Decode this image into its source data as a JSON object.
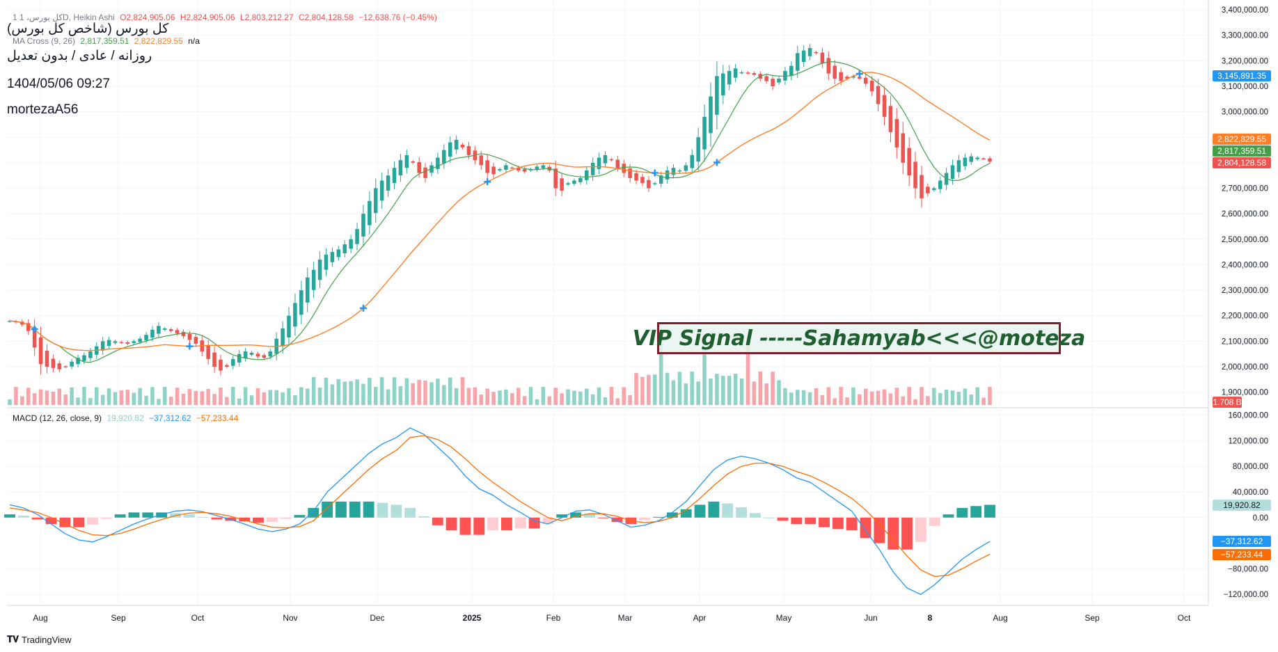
{
  "legend": {
    "symbol": "1  کل بورس، 1D, Heikin Ashi",
    "open": "O2,824,905.06",
    "high": "H2,824,905.06",
    "low": "L2,803,212.27",
    "close": "C2,804,128.58",
    "change": "−12,638.76 (−0.45%)",
    "ma_label": "MA Cross (9, 26)",
    "ma_fast": "2,817,359.51",
    "ma_slow": "2,822,829.55",
    "ma_extra": "n/a"
  },
  "overlay": {
    "line1": "کل بورس (شاخص کل بورس)",
    "line2": "روزانه / عادی / بدون تعدیل",
    "line3": "1404/05/06 09:27",
    "line4": "mortezaA56"
  },
  "signal_text": "VIP Signal -----Sahamyab<<<@moteza",
  "price_tags": {
    "tag1": "3,145,891.35",
    "tag2": "2,822,829.55",
    "tag3": "2,817,359.51",
    "tag4": "2,804,128.58",
    "volume": "1.708 B"
  },
  "macd": {
    "label": "MACD (12, 26, close, 9)",
    "hist": "19,920.82",
    "macd": "−37,312.62",
    "signal": "−57,233.44",
    "tag_hist": "19,920.82",
    "tag_macd": "−37,312.62",
    "tag_signal": "−57,233.44"
  },
  "footer": {
    "brand": "TradingView"
  },
  "colors": {
    "up": "#26a69a",
    "down": "#ef5350",
    "ma_fast": "#43a047",
    "ma_slow": "#ff7f27",
    "macd_line": "#2196f3",
    "signal_line": "#ff6d00",
    "vol_up": "#8fd3c6",
    "vol_down": "#f7a5aa",
    "hist_up_strong": "#26a69a",
    "hist_up_weak": "#b2dfdb",
    "hist_down_strong": "#ff5252",
    "hist_down_weak": "#ffcdd2",
    "signal_tag": "#2196f3"
  },
  "chart_data": [
    {
      "type": "candlestick",
      "title": "",
      "price_axis": {
        "min": 1850000,
        "max": 3400000,
        "ticks": [
          1900000,
          2000000,
          2100000,
          2200000,
          2300000,
          2400000,
          2500000,
          2600000,
          2700000,
          2800000,
          2900000,
          3000000,
          3100000,
          3200000,
          3300000,
          3400000
        ],
        "tick_labels": [
          "1,900,000.00",
          "2,000,000.00",
          "2,100,000.00",
          "2,200,000.00",
          "2,300,000.00",
          "2,400,000.00",
          "2,500,000.00",
          "2,600,000.00",
          "2,700,000.00",
          "2,800,000.00",
          "2,900,000.00",
          "3,000,000.00",
          "3,100,000.00",
          "3,200,000.00",
          "3,300,000.00",
          "3,400,000.00"
        ]
      },
      "time_axis": {
        "labels": [
          "Aug",
          "Sep",
          "Oct",
          "Nov",
          "Dec",
          "2025",
          "Feb",
          "Mar",
          "Apr",
          "May",
          "Jun",
          "8",
          "Aug",
          "Sep",
          "Oct"
        ]
      },
      "close_series": [
        2180000,
        2175000,
        2165000,
        2140000,
        2075000,
        2010000,
        2000000,
        1995000,
        1990000,
        2000000,
        2020000,
        2035000,
        2045000,
        2060000,
        2080000,
        2100000,
        2105000,
        2100000,
        2095000,
        2090000,
        2100000,
        2110000,
        2125000,
        2145000,
        2160000,
        2150000,
        2140000,
        2130000,
        2120000,
        2105000,
        2090000,
        2060000,
        2030000,
        2000000,
        1985000,
        2000000,
        2030000,
        2050000,
        2060000,
        2055000,
        2040000,
        2035000,
        2060000,
        2110000,
        2150000,
        2200000,
        2250000,
        2300000,
        2350000,
        2380000,
        2420000,
        2440000,
        2450000,
        2460000,
        2480000,
        2500000,
        2540000,
        2600000,
        2650000,
        2700000,
        2730000,
        2750000,
        2780000,
        2810000,
        2830000,
        2800000,
        2760000,
        2740000,
        2790000,
        2820000,
        2850000,
        2880000,
        2890000,
        2860000,
        2830000,
        2810000,
        2790000,
        2760000,
        2755000,
        2775000,
        2790000,
        2780000,
        2770000,
        2765000,
        2775000,
        2785000,
        2790000,
        2770000,
        2700000,
        2690000,
        2720000,
        2730000,
        2740000,
        2770000,
        2800000,
        2820000,
        2830000,
        2810000,
        2780000,
        2760000,
        2740000,
        2730000,
        2720000,
        2700000,
        2720000,
        2750000,
        2770000,
        2780000,
        2770000,
        2790000,
        2830000,
        2900000,
        2980000,
        3060000,
        3140000,
        3150000,
        3160000,
        3170000,
        3155000,
        3150000,
        3145000,
        3130000,
        3120000,
        3100000,
        3130000,
        3160000,
        3180000,
        3230000,
        3240000,
        3250000,
        3230000,
        3190000,
        3150000,
        3130000,
        3120000,
        3130000,
        3140000,
        3130000,
        3110000,
        3080000,
        3030000,
        2980000,
        2920000,
        2860000,
        2800000,
        2750000,
        2700000,
        2660000,
        2680000,
        2700000,
        2730000,
        2760000,
        2790000,
        2810000,
        2820000,
        2825000,
        2820000,
        2817000,
        2804128
      ],
      "ma_fast_last": 2817359.51,
      "ma_slow_last": 2822829.55,
      "volume_last": "1.708 B"
    },
    {
      "type": "line",
      "title": "MACD (12, 26, close, 9)",
      "y_axis": {
        "min": -135000,
        "max": 165000,
        "ticks": [
          160000,
          120000,
          80000,
          40000,
          0,
          -80000,
          -120000
        ],
        "tick_labels": [
          "160,000.00",
          "120,000.00",
          "80,000.00",
          "40,000.00",
          "0.00",
          "−80,000.00",
          "−120,000.00"
        ]
      },
      "series": [
        {
          "name": "MACD",
          "values": [
            20000,
            15000,
            5000,
            -10000,
            -25000,
            -35000,
            -38000,
            -30000,
            -20000,
            -10000,
            -2000,
            5000,
            10000,
            12000,
            9000,
            3000,
            -3000,
            -10000,
            -18000,
            -22000,
            -18000,
            -10000,
            10000,
            40000,
            60000,
            80000,
            100000,
            115000,
            125000,
            140000,
            130000,
            110000,
            90000,
            65000,
            45000,
            35000,
            20000,
            8000,
            -5000,
            -10000,
            0,
            10000,
            12000,
            5000,
            -5000,
            -15000,
            -12000,
            -5000,
            8000,
            25000,
            50000,
            75000,
            90000,
            96000,
            92000,
            85000,
            75000,
            62000,
            55000,
            40000,
            25000,
            10000,
            -20000,
            -50000,
            -85000,
            -110000,
            -120000,
            -105000,
            -85000,
            -65000,
            -50000,
            -37312
          ]
        },
        {
          "name": "Signal",
          "values": [
            15000,
            12000,
            8000,
            0,
            -10000,
            -20000,
            -27000,
            -28000,
            -25000,
            -18000,
            -10000,
            -3000,
            3000,
            7000,
            8000,
            6000,
            2000,
            -4000,
            -10000,
            -15000,
            -16000,
            -14000,
            -5000,
            15000,
            35000,
            55000,
            75000,
            92000,
            105000,
            125000,
            128000,
            122000,
            110000,
            92000,
            72000,
            55000,
            40000,
            25000,
            12000,
            0,
            -5000,
            2000,
            6000,
            6000,
            2000,
            -5000,
            -8000,
            -6000,
            0,
            12000,
            30000,
            50000,
            68000,
            80000,
            85000,
            85000,
            80000,
            72000,
            65000,
            55000,
            43000,
            30000,
            12000,
            -10000,
            -35000,
            -60000,
            -82000,
            -92000,
            -90000,
            -80000,
            -68000,
            -57233
          ]
        }
      ],
      "histogram_last": 19920.82
    }
  ]
}
